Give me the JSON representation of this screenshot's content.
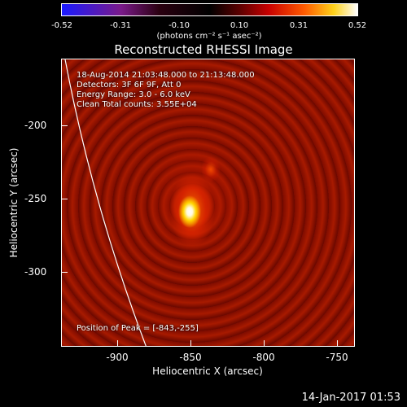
{
  "colorbar": {
    "ticks": [
      "-0.52",
      "-0.31",
      "-0.10",
      "0.10",
      "0.31",
      "0.52"
    ],
    "units": "(photons cm⁻² s⁻¹ asec⁻²)"
  },
  "title": "Reconstructed RHESSI Image",
  "info": {
    "time_range": "18-Aug-2014 21:03:48.000 to 21:13:48.000",
    "detectors": "Detectors: 3F 6F 9F, Att 0",
    "energy": "Energy Range: 3.0 - 6.0 keV",
    "clean": "Clean    Total counts: 3.55E+04",
    "peak": "Position of Peak = [-843,-255]"
  },
  "axes": {
    "xlabel": "Heliocentric X (arcsec)",
    "ylabel": "Heliocentric Y (arcsec)",
    "xticks": [
      "-900",
      "-850",
      "-800",
      "-750"
    ],
    "yticks": [
      "-200",
      "-250",
      "-300"
    ]
  },
  "footer": {
    "date": "14-Jan-2017 01:53"
  },
  "colors": {
    "limb": "#ffffff",
    "background": "#000000"
  }
}
